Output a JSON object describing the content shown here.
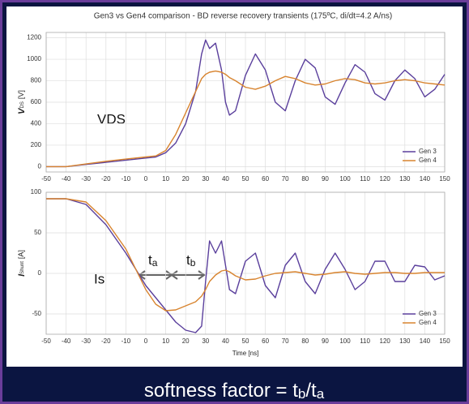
{
  "chart_data": [
    {
      "type": "line",
      "title": "Gen3 vs Gen4 comparison - BD reverse recovery transients (175ºC, di/dt=4.2 A/ns)",
      "ylabel": "V",
      "ylabel_sub": "DS",
      "ylabel_unit": "[V]",
      "x": [
        -50,
        -40,
        -30,
        -20,
        -10,
        0,
        5,
        10,
        15,
        20,
        25,
        28,
        30,
        32,
        35,
        38,
        40,
        42,
        45,
        50,
        55,
        60,
        65,
        70,
        75,
        80,
        85,
        90,
        95,
        100,
        105,
        110,
        115,
        120,
        125,
        130,
        135,
        140,
        145,
        150
      ],
      "series": [
        {
          "name": "Gen 3",
          "color": "#5a3f9c",
          "values": [
            0,
            0,
            20,
            40,
            60,
            80,
            90,
            130,
            220,
            400,
            700,
            1050,
            1180,
            1100,
            1150,
            900,
            600,
            480,
            520,
            850,
            1050,
            900,
            600,
            520,
            800,
            1000,
            920,
            650,
            580,
            780,
            950,
            880,
            680,
            620,
            800,
            900,
            820,
            650,
            720,
            860
          ]
        },
        {
          "name": "Gen 4",
          "color": "#d8842f",
          "values": [
            0,
            0,
            25,
            50,
            70,
            90,
            100,
            150,
            300,
            500,
            700,
            820,
            860,
            880,
            890,
            880,
            860,
            830,
            800,
            740,
            720,
            750,
            800,
            840,
            820,
            780,
            760,
            770,
            800,
            820,
            810,
            780,
            770,
            780,
            800,
            810,
            800,
            780,
            770,
            760
          ]
        }
      ],
      "xlim": [
        -50,
        150
      ],
      "xticks": [
        -50,
        -40,
        -30,
        -20,
        -10,
        0,
        10,
        20,
        30,
        40,
        50,
        60,
        70,
        80,
        90,
        100,
        110,
        120,
        130,
        140,
        150
      ],
      "ylim": [
        -50,
        1250
      ],
      "yticks": [
        0,
        200,
        400,
        600,
        800,
        1000,
        1200
      ],
      "grid": true,
      "legend": "lower-right"
    },
    {
      "type": "line",
      "xlabel": "Time [ns]",
      "ylabel": "I",
      "ylabel_sub": "Shunt",
      "ylabel_unit": "[A]",
      "x": [
        -50,
        -40,
        -30,
        -20,
        -10,
        0,
        5,
        10,
        15,
        20,
        25,
        28,
        30,
        32,
        35,
        38,
        40,
        42,
        45,
        50,
        55,
        60,
        65,
        70,
        75,
        80,
        85,
        90,
        95,
        100,
        105,
        110,
        115,
        120,
        125,
        130,
        135,
        140,
        145,
        150
      ],
      "series": [
        {
          "name": "Gen 3",
          "color": "#5a3f9c",
          "values": [
            92,
            92,
            85,
            60,
            25,
            -15,
            -30,
            -45,
            -60,
            -70,
            -73,
            -65,
            -10,
            40,
            25,
            40,
            10,
            -20,
            -25,
            15,
            25,
            -15,
            -30,
            10,
            25,
            -10,
            -25,
            5,
            25,
            5,
            -20,
            -10,
            15,
            15,
            -10,
            -10,
            10,
            8,
            -8,
            -3
          ]
        },
        {
          "name": "Gen 4",
          "color": "#d8842f",
          "values": [
            92,
            92,
            88,
            65,
            30,
            -20,
            -38,
            -46,
            -45,
            -40,
            -35,
            -28,
            -20,
            -10,
            -2,
            3,
            4,
            2,
            -3,
            -8,
            -7,
            -3,
            0,
            1,
            2,
            0,
            -2,
            -1,
            1,
            2,
            0,
            -1,
            0,
            1,
            1,
            0,
            0,
            1,
            1,
            1
          ]
        }
      ],
      "xlim": [
        -50,
        150
      ],
      "xticks": [
        -50,
        -40,
        -30,
        -20,
        -10,
        0,
        10,
        20,
        30,
        40,
        50,
        60,
        70,
        80,
        90,
        100,
        110,
        120,
        130,
        140,
        150
      ],
      "ylim": [
        -75,
        100
      ],
      "yticks": [
        -50,
        0,
        50,
        100
      ],
      "grid": true,
      "legend": "lower-right"
    }
  ],
  "annotations": {
    "vds": "VDS",
    "is": "Is",
    "ta_t": "t",
    "ta_sub": "a",
    "tb_t": "t",
    "tb_sub": "b"
  },
  "footer": {
    "prefix": "softness factor = t",
    "sub1": "b",
    "mid": "/t",
    "sub2": "a"
  }
}
